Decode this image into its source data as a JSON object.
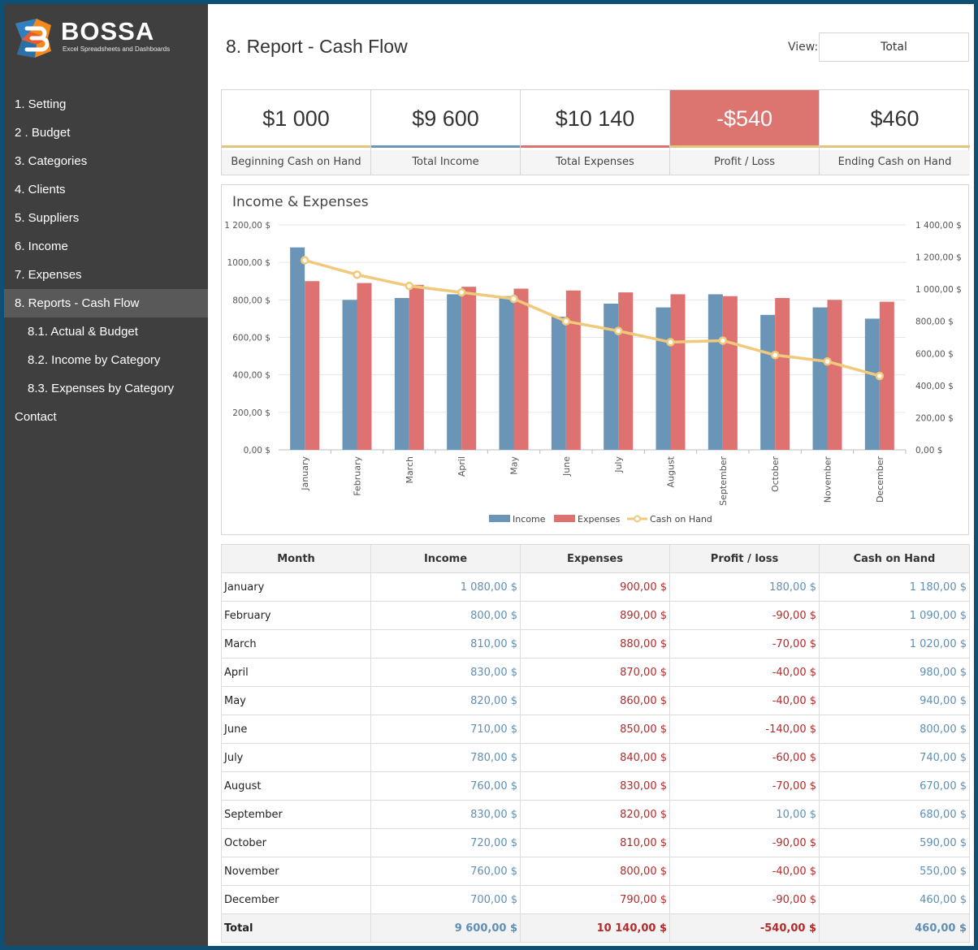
{
  "brand": {
    "name": "BOSSA",
    "tagline": "Excel Spreadsheets and Dashboards"
  },
  "sidebar": {
    "items": [
      {
        "label": "1. Setting",
        "sub": false,
        "active": false
      },
      {
        "label": "2 . Budget",
        "sub": false,
        "active": false
      },
      {
        "label": "3. Categories",
        "sub": false,
        "active": false
      },
      {
        "label": "4. Clients",
        "sub": false,
        "active": false
      },
      {
        "label": "5. Suppliers",
        "sub": false,
        "active": false
      },
      {
        "label": "6. Income",
        "sub": false,
        "active": false
      },
      {
        "label": "7. Expenses",
        "sub": false,
        "active": false
      },
      {
        "label": "8. Reports - Cash Flow",
        "sub": false,
        "active": true
      },
      {
        "label": "8.1. Actual & Budget",
        "sub": true,
        "active": false
      },
      {
        "label": "8.2. Income by Category",
        "sub": true,
        "active": false
      },
      {
        "label": "8.3. Expenses by Category",
        "sub": true,
        "active": false
      },
      {
        "label": "Contact",
        "sub": false,
        "active": false
      }
    ]
  },
  "header": {
    "title": "8. Report - Cash Flow",
    "view_label": "View:",
    "view_value": "Total"
  },
  "kpis": [
    {
      "value": "$1 000",
      "label": "Beginning Cash on Hand",
      "negative": false
    },
    {
      "value": "$9 600",
      "label": "Total Income",
      "negative": false
    },
    {
      "value": "$10 140",
      "label": "Total Expenses",
      "negative": false
    },
    {
      "value": "-$540",
      "label": "Profit / Loss",
      "negative": true
    },
    {
      "value": "$460",
      "label": "Ending Cash on Hand",
      "negative": false
    }
  ],
  "colors": {
    "income": "#6a95b6",
    "expenses": "#dd7270",
    "cash": "#f0c97a",
    "kpi_underline": "#e0c57a",
    "negative_bg": "#dc7470",
    "blue_text": "#5f8fb5",
    "red_text": "#b52a2a"
  },
  "chart_data": {
    "type": "bar",
    "title": "Income & Expenses",
    "categories": [
      "January",
      "February",
      "March",
      "April",
      "May",
      "June",
      "July",
      "August",
      "September",
      "October",
      "November",
      "December"
    ],
    "series": [
      {
        "name": "Income",
        "type": "bar",
        "axis": "left",
        "values": [
          1080,
          800,
          810,
          830,
          820,
          710,
          780,
          760,
          830,
          720,
          760,
          700
        ]
      },
      {
        "name": "Expenses",
        "type": "bar",
        "axis": "left",
        "values": [
          900,
          890,
          880,
          870,
          860,
          850,
          840,
          830,
          820,
          810,
          800,
          790
        ]
      },
      {
        "name": "Cash on Hand",
        "type": "line",
        "axis": "right",
        "values": [
          1180,
          1090,
          1020,
          980,
          940,
          800,
          740,
          670,
          680,
          590,
          550,
          460
        ]
      }
    ],
    "ylim_left": [
      0,
      1200
    ],
    "yticks_left": [
      "0,00 $",
      "200,00 $",
      "400,00 $",
      "600,00 $",
      "800,00 $",
      "1000,00 $",
      "1 200,00 $"
    ],
    "ylim_right": [
      0,
      1400
    ],
    "yticks_right": [
      "0,00 $",
      "200,00 $",
      "400,00 $",
      "600,00 $",
      "800,00 $",
      "1 000,00 $",
      "1 200,00 $",
      "1 400,00 $"
    ],
    "legend": "bottom",
    "grid": true
  },
  "table": {
    "headers": [
      "Month",
      "Income",
      "Expenses",
      "Profit / loss",
      "Cash on Hand"
    ],
    "rows": [
      [
        "January",
        "1 080,00 $",
        "900,00 $",
        "180,00 $",
        "1 180,00 $"
      ],
      [
        "February",
        "800,00 $",
        "890,00 $",
        "-90,00 $",
        "1 090,00 $"
      ],
      [
        "March",
        "810,00 $",
        "880,00 $",
        "-70,00 $",
        "1 020,00 $"
      ],
      [
        "April",
        "830,00 $",
        "870,00 $",
        "-40,00 $",
        "980,00 $"
      ],
      [
        "May",
        "820,00 $",
        "860,00 $",
        "-40,00 $",
        "940,00 $"
      ],
      [
        "June",
        "710,00 $",
        "850,00 $",
        "-140,00 $",
        "800,00 $"
      ],
      [
        "July",
        "780,00 $",
        "840,00 $",
        "-60,00 $",
        "740,00 $"
      ],
      [
        "August",
        "760,00 $",
        "830,00 $",
        "-70,00 $",
        "670,00 $"
      ],
      [
        "September",
        "830,00 $",
        "820,00 $",
        "10,00 $",
        "680,00 $"
      ],
      [
        "October",
        "720,00 $",
        "810,00 $",
        "-90,00 $",
        "590,00 $"
      ],
      [
        "November",
        "760,00 $",
        "800,00 $",
        "-40,00 $",
        "550,00 $"
      ],
      [
        "December",
        "700,00 $",
        "790,00 $",
        "-90,00 $",
        "460,00 $"
      ]
    ],
    "total": [
      "Total",
      "9 600,00 $",
      "10 140,00 $",
      "-540,00 $",
      "460,00 $"
    ]
  }
}
